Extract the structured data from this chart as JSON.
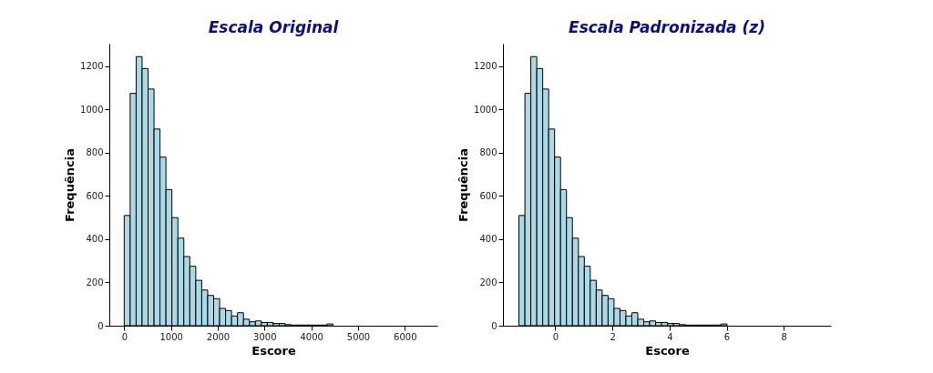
{
  "chart_data": [
    {
      "type": "histogram",
      "title": "Escala Original",
      "xlabel": "Escore",
      "ylabel": "Frequência",
      "color": "#add8e6",
      "bins": [
        0,
        127.5,
        255,
        382.5,
        510,
        637.5,
        765,
        892.5,
        1020,
        1147.5,
        1275,
        1402.5,
        1530,
        1657.5,
        1785,
        1912.5,
        2040,
        2167.5,
        2295,
        2422.5,
        2550,
        2677.5,
        2805,
        2932.5,
        3060,
        3187.5,
        3315,
        3442.5,
        3570,
        3697.5,
        3825,
        3952.5,
        4080,
        4207.5,
        4335,
        4462.5
      ],
      "values": [
        510,
        1075,
        1245,
        1190,
        1095,
        910,
        780,
        630,
        500,
        405,
        320,
        275,
        210,
        165,
        140,
        125,
        80,
        70,
        45,
        60,
        30,
        18,
        22,
        15,
        15,
        10,
        10,
        5,
        3,
        3,
        3,
        3,
        3,
        3,
        8
      ],
      "xlim": [
        -318,
        6695
      ],
      "ylim": [
        0,
        1305
      ],
      "xticks": [
        0,
        1000,
        2000,
        3000,
        4000,
        5000,
        6000
      ],
      "yticks": [
        0,
        200,
        400,
        600,
        800,
        1000,
        1200
      ]
    },
    {
      "type": "histogram",
      "title": "Escala Padronizada (z)",
      "xlabel": "Escore",
      "ylabel": "Frequência",
      "color": "#add8e6",
      "bins": [
        -1.27,
        -1.062,
        -0.854,
        -0.646,
        -0.438,
        -0.23,
        -0.022,
        0.186,
        0.394,
        0.602,
        0.81,
        1.018,
        1.226,
        1.434,
        1.642,
        1.85,
        2.058,
        2.266,
        2.474,
        2.682,
        2.89,
        3.098,
        3.306,
        3.514,
        3.722,
        3.93,
        4.138,
        4.346,
        4.554,
        4.762,
        4.97,
        5.178,
        5.386,
        5.594,
        5.802,
        6.01
      ],
      "values": [
        510,
        1075,
        1245,
        1190,
        1095,
        910,
        780,
        630,
        500,
        405,
        320,
        275,
        210,
        165,
        140,
        125,
        80,
        70,
        45,
        60,
        30,
        18,
        22,
        15,
        15,
        10,
        10,
        5,
        3,
        3,
        3,
        3,
        3,
        3,
        8
      ],
      "xlim": [
        -1.83,
        9.65
      ],
      "ylim": [
        0,
        1305
      ],
      "xticks": [
        0,
        2,
        4,
        6,
        8
      ],
      "yticks": [
        0,
        200,
        400,
        600,
        800,
        1000,
        1200
      ]
    }
  ]
}
